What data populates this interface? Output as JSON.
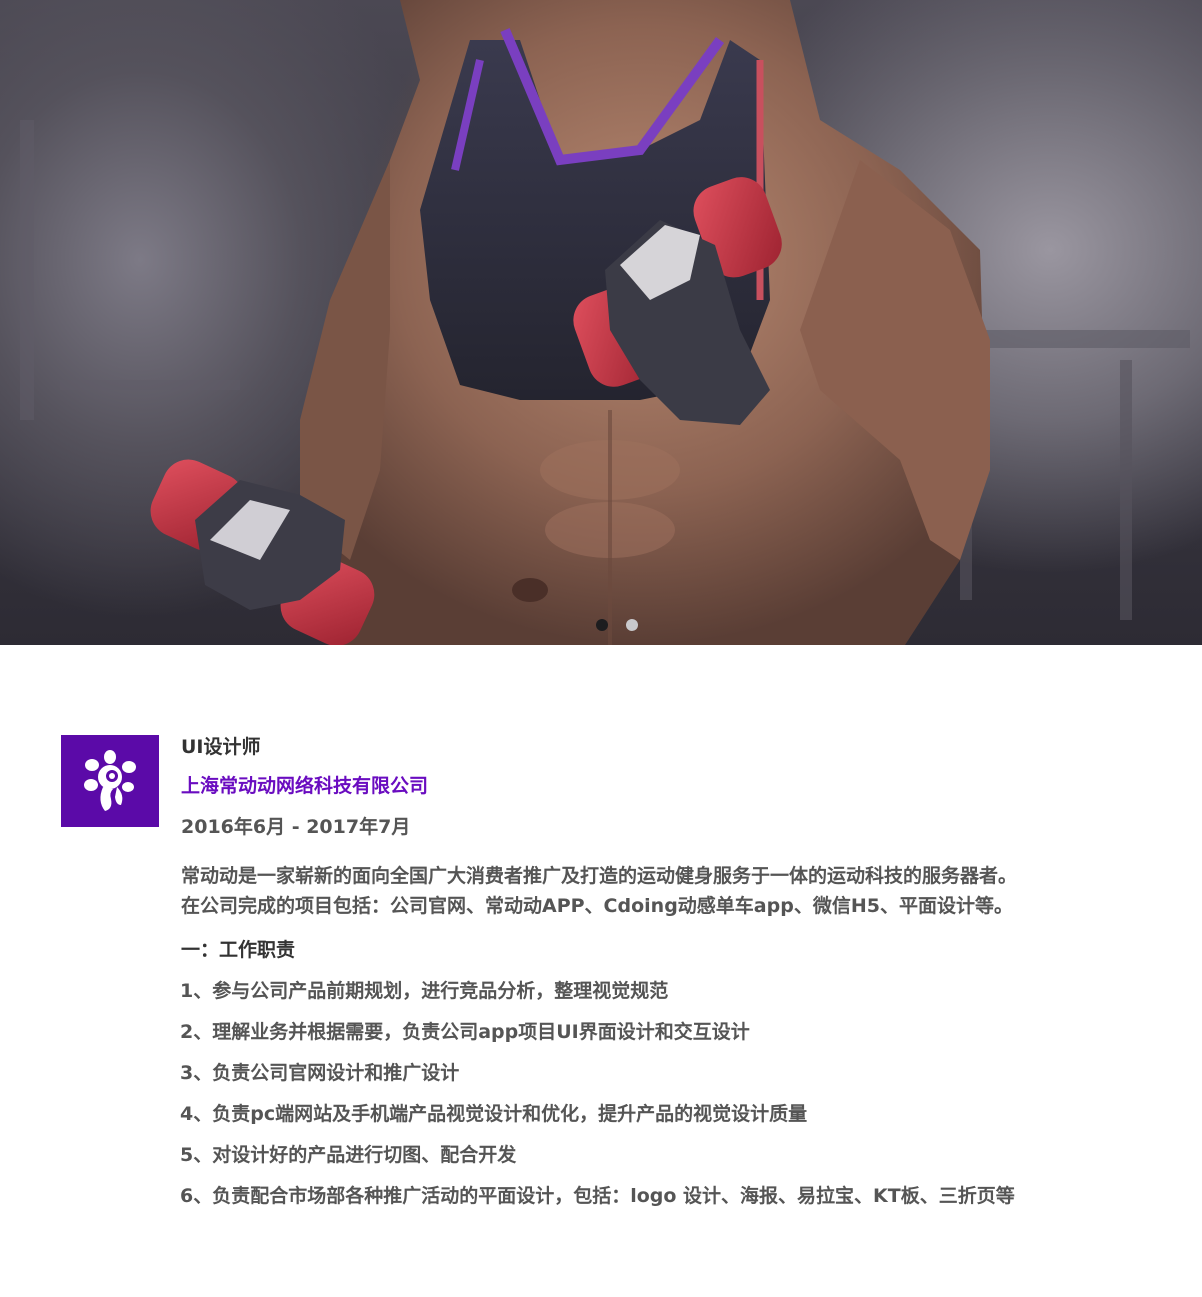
{
  "hero": {
    "image": "fitness-woman-with-dumbbells",
    "slides": 2,
    "active_slide": 1
  },
  "experience": {
    "logo_icon": "changdongdong-logo-icon",
    "logo_bg": "#5b0aa8",
    "title": "UI设计师",
    "company": "上海常动动网络科技有限公司",
    "company_color": "#6a0cc0",
    "period": "2016年6月 - 2017年7月",
    "intro": [
      "常动动是一家崭新的面向全国广大消费者推广及打造的运动健身服务于一体的运动科技的服务器者。",
      "在公司完成的项目包括：公司官网、常动动APP、Cdoing动感单车app、微信H5、平面设计等。"
    ],
    "duties_heading": "一：工作职责",
    "duties": [
      "1、参与公司产品前期规划，进行竞品分析，整理视觉规范",
      "2、理解业务并根据需要，负责公司app项目UI界面设计和交互设计",
      "3、负责公司官网设计和推广设计",
      "4、负责pc端网站及手机端产品视觉设计和优化，提升产品的视觉设计质量",
      "5、对设计好的产品进行切图、配合开发",
      "6、负责配合市场部各种推广活动的平面设计，包括：logo 设计、海报、易拉宝、KT板、三折页等"
    ]
  }
}
